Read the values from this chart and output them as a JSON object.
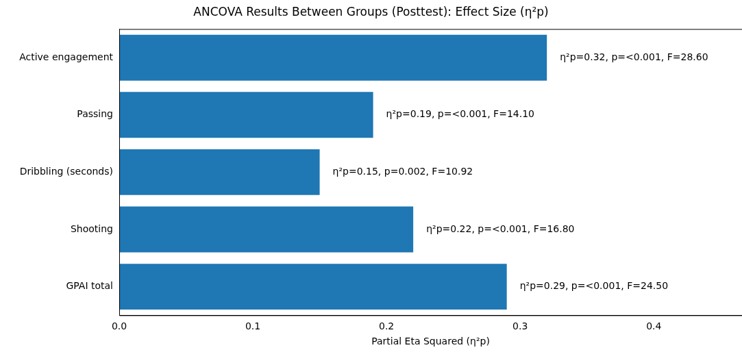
{
  "chart_data": {
    "type": "bar",
    "orientation": "horizontal",
    "title": "ANCOVA Results Between Groups (Posttest): Effect Size (η²p)",
    "xlabel": "Partial Eta Squared (η²p)",
    "categories": [
      "Active engagement",
      "Passing",
      "Dribbling (seconds)",
      "Shooting",
      "GPAI total"
    ],
    "values": [
      0.32,
      0.19,
      0.15,
      0.22,
      0.29
    ],
    "color": "#1f77b4",
    "value_labels": [
      "η²p=0.32, p=<0.001, F=28.60",
      "η²p=0.19, p=<0.001, F=14.10",
      "η²p=0.15, p=0.002, F=10.92",
      "η²p=0.22, p=<0.001, F=16.80",
      "η²p=0.29, p=<0.001, F=24.50"
    ],
    "xlim": [
      0,
      0.466
    ],
    "xticks": [
      {
        "value": 0,
        "label": "0.0"
      },
      0.1,
      0.2,
      0.3,
      0.4
    ],
    "grid": false,
    "legend": false
  }
}
